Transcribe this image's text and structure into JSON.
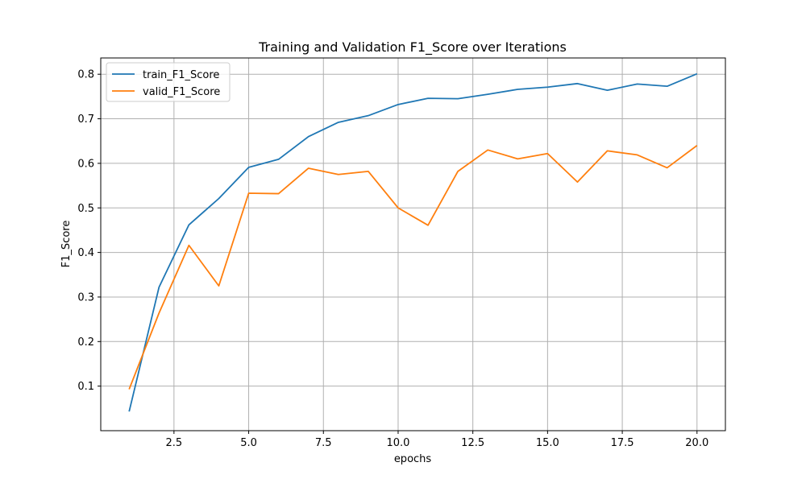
{
  "chart_data": {
    "type": "line",
    "title": "Training and Validation F1_Score over Iterations",
    "xlabel": "epochs",
    "ylabel": "F1_Score",
    "xlim": [
      0.05,
      20.95
    ],
    "ylim": [
      0.0,
      0.8365
    ],
    "xticks": [
      2.5,
      5.0,
      7.5,
      10.0,
      12.5,
      15.0,
      17.5,
      20.0
    ],
    "xtick_labels": [
      "2.5",
      "5.0",
      "7.5",
      "10.0",
      "12.5",
      "15.0",
      "17.5",
      "20.0"
    ],
    "yticks": [
      0.1,
      0.2,
      0.3,
      0.4,
      0.5,
      0.6,
      0.7,
      0.8
    ],
    "ytick_labels": [
      "0.1",
      "0.2",
      "0.3",
      "0.4",
      "0.5",
      "0.6",
      "0.7",
      "0.8"
    ],
    "grid": true,
    "legend_position": "top-left",
    "x": [
      1,
      2,
      3,
      4,
      5,
      6,
      7,
      8,
      9,
      10,
      11,
      12,
      13,
      14,
      15,
      16,
      17,
      18,
      19,
      20
    ],
    "series": [
      {
        "name": "train_F1_Score",
        "color": "#1f77b4",
        "values": [
          0.043,
          0.322,
          0.462,
          0.521,
          0.591,
          0.609,
          0.66,
          0.692,
          0.707,
          0.732,
          0.746,
          0.745,
          0.755,
          0.766,
          0.771,
          0.779,
          0.764,
          0.778,
          0.773,
          0.801
        ]
      },
      {
        "name": "valid_F1_Score",
        "color": "#ff7f0e",
        "values": [
          0.093,
          0.264,
          0.416,
          0.325,
          0.533,
          0.532,
          0.589,
          0.575,
          0.582,
          0.5,
          0.461,
          0.582,
          0.63,
          0.61,
          0.622,
          0.558,
          0.628,
          0.619,
          0.59,
          0.64
        ]
      }
    ]
  }
}
